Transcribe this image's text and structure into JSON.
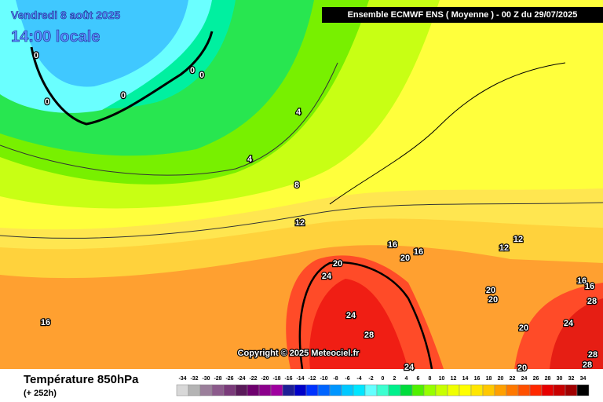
{
  "header": {
    "date": "Vendredi 8 août 2025",
    "time": "14:00 locale",
    "run": "Ensemble ECMWF ENS  ( Moyenne )  -  00 Z du 29/07/2025"
  },
  "copyright": "Copyright © 2025 Meteociel.fr",
  "footer": {
    "title": "Température 850hPa",
    "lead": "(+ 252h)"
  },
  "contour_labels": [
    "0",
    "0",
    "0",
    "0",
    "0",
    "4",
    "4",
    "8",
    "12",
    "12",
    "12",
    "16",
    "16",
    "16",
    "16",
    "16",
    "20",
    "20",
    "20",
    "20",
    "20",
    "20",
    "24",
    "24",
    "24",
    "24",
    "28",
    "28",
    "28",
    "28"
  ],
  "legend": {
    "values": [
      -34,
      -32,
      -30,
      -28,
      -26,
      -24,
      -22,
      -20,
      -18,
      -16,
      -14,
      -12,
      -10,
      -8,
      -6,
      -4,
      -2,
      0,
      2,
      4,
      6,
      8,
      10,
      12,
      14,
      16,
      18,
      20,
      22,
      24,
      26,
      28,
      30,
      32,
      34
    ],
    "colors": [
      "#d8d8d8",
      "#b4b4b4",
      "#9b7f9b",
      "#8c5a8c",
      "#7a3a7a",
      "#5a1a5a",
      "#6e006e",
      "#8c008c",
      "#a000a0",
      "#1e1e96",
      "#0000c8",
      "#0032ff",
      "#0064ff",
      "#0096ff",
      "#00c8ff",
      "#00e6ff",
      "#64ffff",
      "#3cffd0",
      "#00f08c",
      "#00dc3c",
      "#50f000",
      "#96ff00",
      "#c8ff00",
      "#f0ff00",
      "#ffff00",
      "#ffe600",
      "#ffc800",
      "#ffa000",
      "#ff7800",
      "#ff5000",
      "#ff2800",
      "#e60000",
      "#c80000",
      "#a00000",
      "#000000"
    ]
  }
}
